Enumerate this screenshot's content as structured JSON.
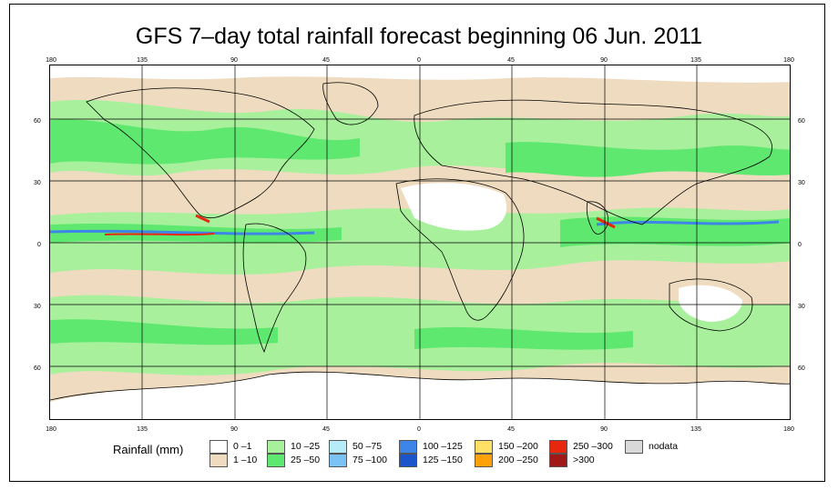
{
  "title": "GFS 7–day total rainfall forecast beginning 06 Jun. 2011",
  "axes": {
    "lon_ticks": [
      "180",
      "135",
      "90",
      "45",
      "0",
      "45",
      "90",
      "135",
      "180"
    ],
    "lat_ticks": [
      "60",
      "30",
      "0",
      "30",
      "60"
    ]
  },
  "legend": {
    "title": "Rainfall (mm)",
    "items": [
      {
        "label": "0 –1",
        "color": "#ffffff"
      },
      {
        "label": "1 –10",
        "color": "#efdcc0"
      },
      {
        "label": "10 –25",
        "color": "#a8f09c"
      },
      {
        "label": "25 –50",
        "color": "#5fe86f"
      },
      {
        "label": "50 –75",
        "color": "#b5ecf7"
      },
      {
        "label": "75 –100",
        "color": "#7cc3f5"
      },
      {
        "label": "100 –125",
        "color": "#3d86e8"
      },
      {
        "label": "125 –150",
        "color": "#1c55c9"
      },
      {
        "label": "150 –200",
        "color": "#ffe066"
      },
      {
        "label": "200 –250",
        "color": "#ffa20a"
      },
      {
        "label": "250 –300",
        "color": "#e8280e"
      },
      {
        "label": ">300",
        "color": "#a01818"
      },
      {
        "label": "nodata",
        "color": "#d9d9d9"
      }
    ]
  },
  "colors": {
    "ocean_base": "#efdcc0",
    "light_green": "#a8f09c",
    "green": "#5fe86f",
    "blue": "#3d86e8",
    "red": "#e8280e",
    "land_dry": "#ffffff"
  }
}
